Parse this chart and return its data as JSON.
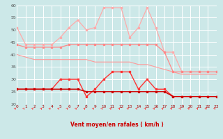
{
  "hours": [
    0,
    1,
    2,
    3,
    4,
    5,
    6,
    7,
    8,
    9,
    10,
    11,
    12,
    13,
    14,
    15,
    16,
    17,
    18,
    19,
    20,
    21,
    22,
    23
  ],
  "rafales": [
    51,
    44,
    44,
    44,
    44,
    47,
    51,
    54,
    50,
    51,
    59,
    59,
    59,
    47,
    51,
    59,
    51,
    41,
    41,
    33,
    33,
    33,
    33,
    33
  ],
  "moyen_top": [
    44,
    43,
    43,
    43,
    43,
    43,
    44,
    44,
    44,
    44,
    44,
    44,
    44,
    44,
    44,
    44,
    44,
    41,
    33,
    33,
    33,
    33,
    33,
    33
  ],
  "moyen_mid": [
    40,
    39,
    38,
    38,
    38,
    38,
    38,
    38,
    38,
    37,
    37,
    37,
    37,
    37,
    36,
    36,
    35,
    34,
    33,
    32,
    32,
    32,
    32,
    32
  ],
  "wind_max": [
    26,
    26,
    26,
    26,
    26,
    30,
    30,
    30,
    23,
    26,
    30,
    33,
    33,
    33,
    26,
    30,
    26,
    26,
    23,
    23,
    23,
    23,
    23,
    23
  ],
  "wind_mean": [
    26,
    26,
    26,
    26,
    26,
    26,
    26,
    26,
    25,
    25,
    25,
    25,
    25,
    25,
    25,
    25,
    25,
    25,
    23,
    23,
    23,
    23,
    23,
    23
  ],
  "bg_color": "#cce8e8",
  "grid_color": "#ffffff",
  "line_rafales": "#ffaaaa",
  "line_moyen_top": "#ff8888",
  "line_moyen_mid": "#ff9999",
  "line_wind_max": "#ff3333",
  "line_wind_mean": "#cc0000",
  "xlabel": "Vent moyen/en rafales ( km/h )",
  "xlabel_color": "#cc0000",
  "ylabel_max": 60,
  "ylabel_min": 20,
  "yticks": [
    20,
    25,
    30,
    35,
    40,
    45,
    50,
    55,
    60
  ]
}
